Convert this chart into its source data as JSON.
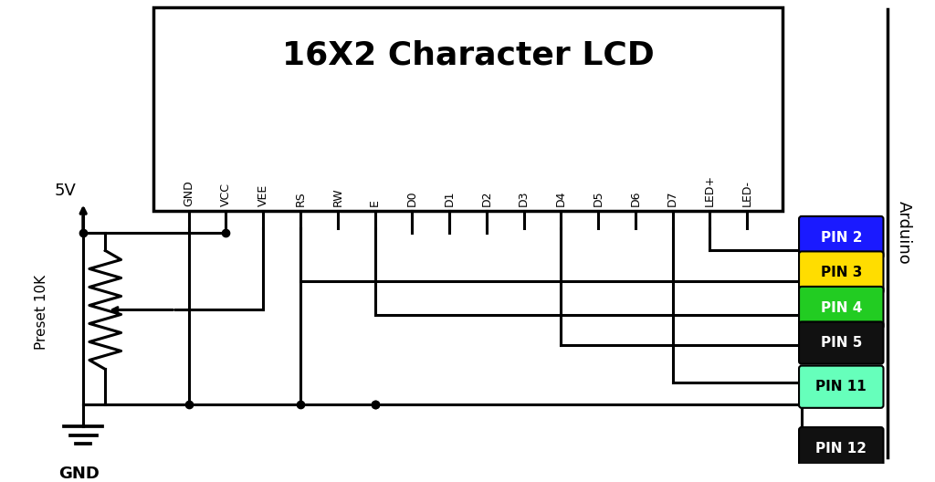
{
  "title": "16X2 Character LCD",
  "background_color": "#ffffff",
  "pin_labels": [
    "GND",
    "VCC",
    "VEE",
    "RS",
    "RW",
    "E",
    "D0",
    "D1",
    "D2",
    "D3",
    "D4",
    "D5",
    "D6",
    "D7",
    "LED+",
    "LED-"
  ],
  "arduino_pins": [
    {
      "label": "PIN 2",
      "color": "#1a1aff",
      "text_color": "#ffffff"
    },
    {
      "label": "PIN 3",
      "color": "#ffdd00",
      "text_color": "#000000"
    },
    {
      "label": "PIN 4",
      "color": "#22cc22",
      "text_color": "#ffffff"
    },
    {
      "label": "PIN 5",
      "color": "#111111",
      "text_color": "#ffffff"
    },
    {
      "label": "PIN 11",
      "color": "#66ffbb",
      "text_color": "#000000"
    },
    {
      "label": "PIN 12",
      "color": "#111111",
      "text_color": "#ffffff"
    }
  ],
  "arduino_label": "Arduino",
  "vcc_label": "5V",
  "gnd_label": "GND",
  "preset_label": "Preset 10K"
}
